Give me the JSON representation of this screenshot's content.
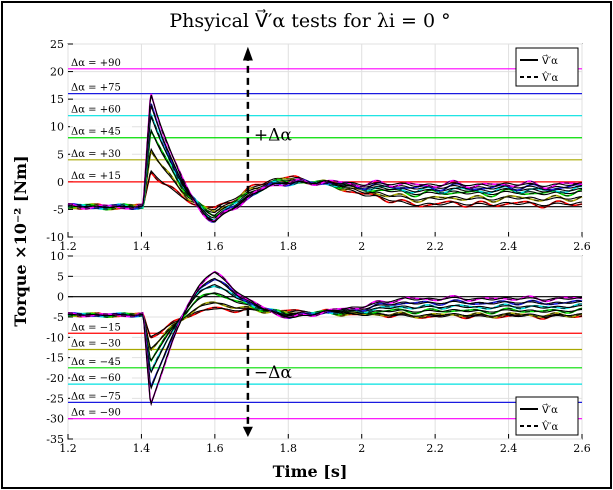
{
  "chart_data": {
    "type": "line",
    "title": "Phsyical V⃗′α tests for λi = 0 °",
    "xlabel": "Time [s]",
    "ylabel": "Torque ×10⁻² [Nm]",
    "xlim": [
      1.2,
      2.6
    ],
    "xticks": [
      "1.2",
      "1.4",
      "1.6",
      "1.8",
      "2",
      "2.2",
      "2.4",
      "2.6"
    ],
    "legend": {
      "solid_label": "V⃗′α",
      "dashed_label": "V̂′α"
    },
    "colors": {
      "black": "#000000",
      "darkred": "#b00000",
      "red": "#ff0000",
      "olive": "#a8a800",
      "yellow": "#e8e800",
      "green": "#00dd00",
      "cyan": "#00e0e0",
      "blue": "#1a1ae0",
      "navy": "#00008b",
      "magenta": "#ff00ff"
    },
    "panels": [
      {
        "ylim": [
          -10,
          25
        ],
        "yticks": [
          "-10",
          "-5",
          "0",
          "5",
          "10",
          "15",
          "20",
          "25"
        ],
        "arrow_label": "+Δα",
        "legend_position": "top-right",
        "levels": [
          {
            "label": "Δα = +90",
            "value": 20.5,
            "color": "#ff00ff"
          },
          {
            "label": "Δα = +75",
            "value": 16.0,
            "color": "#1a1ae0"
          },
          {
            "label": "Δα = +60",
            "value": 12.0,
            "color": "#00e0e0"
          },
          {
            "label": "Δα = +45",
            "value": 8.0,
            "color": "#00dd00"
          },
          {
            "label": "Δα = +30",
            "value": 4.0,
            "color": "#a8a800"
          },
          {
            "label": "Δα = +15",
            "value": 0.0,
            "color": "#ff0000"
          }
        ],
        "reference_line": -4.5,
        "series": [
          {
            "peak": 2.0,
            "trough": -5.0,
            "over": 0.8,
            "final": -4.0,
            "color": "#ff0000"
          },
          {
            "peak": 6.0,
            "trough": -5.5,
            "over": 0.5,
            "final": -3.0,
            "color": "#a8a800"
          },
          {
            "peak": 9.5,
            "trough": -6.0,
            "over": 0.2,
            "final": -2.0,
            "color": "#00dd00"
          },
          {
            "peak": 12.0,
            "trough": -6.5,
            "over": 0.0,
            "final": -1.5,
            "color": "#00e0e0"
          },
          {
            "peak": 14.0,
            "trough": -7.0,
            "over": 0.0,
            "final": -1.0,
            "color": "#1a1ae0"
          },
          {
            "peak": 16.0,
            "trough": -7.2,
            "over": 0.0,
            "final": -0.5,
            "color": "#ff00ff"
          }
        ]
      },
      {
        "ylim": [
          -35,
          10
        ],
        "yticks": [
          "-35",
          "-30",
          "-25",
          "-20",
          "-15",
          "-10",
          "-5",
          "0",
          "5",
          "10"
        ],
        "arrow_label": "−Δα",
        "legend_position": "bottom-right",
        "levels": [
          {
            "label": "Δα = −15",
            "value": -9.0,
            "color": "#ff0000"
          },
          {
            "label": "Δα = −30",
            "value": -13.0,
            "color": "#a8a800"
          },
          {
            "label": "Δα = −45",
            "value": -17.5,
            "color": "#00dd00"
          },
          {
            "label": "Δα = −60",
            "value": -21.5,
            "color": "#00e0e0"
          },
          {
            "label": "Δα = −75",
            "value": -26.0,
            "color": "#1a1ae0"
          },
          {
            "label": "Δα = −90",
            "value": -30.0,
            "color": "#ff00ff"
          }
        ],
        "reference_line": 0,
        "series": [
          {
            "peak": -10.0,
            "trough": -3.0,
            "over": -3.5,
            "final": -4.8,
            "color": "#ff0000"
          },
          {
            "peak": -13.0,
            "trough": -1.5,
            "over": -4.0,
            "final": -4.5,
            "color": "#a8a800"
          },
          {
            "peak": -16.0,
            "trough": 1.0,
            "over": -4.2,
            "final": -3.5,
            "color": "#00dd00"
          },
          {
            "peak": -19.0,
            "trough": 3.0,
            "over": -4.5,
            "final": -2.5,
            "color": "#00e0e0"
          },
          {
            "peak": -23.0,
            "trough": 4.5,
            "over": -4.8,
            "final": -1.5,
            "color": "#1a1ae0"
          },
          {
            "peak": -27.0,
            "trough": 6.0,
            "over": -5.0,
            "final": -0.5,
            "color": "#ff00ff"
          }
        ]
      }
    ]
  }
}
